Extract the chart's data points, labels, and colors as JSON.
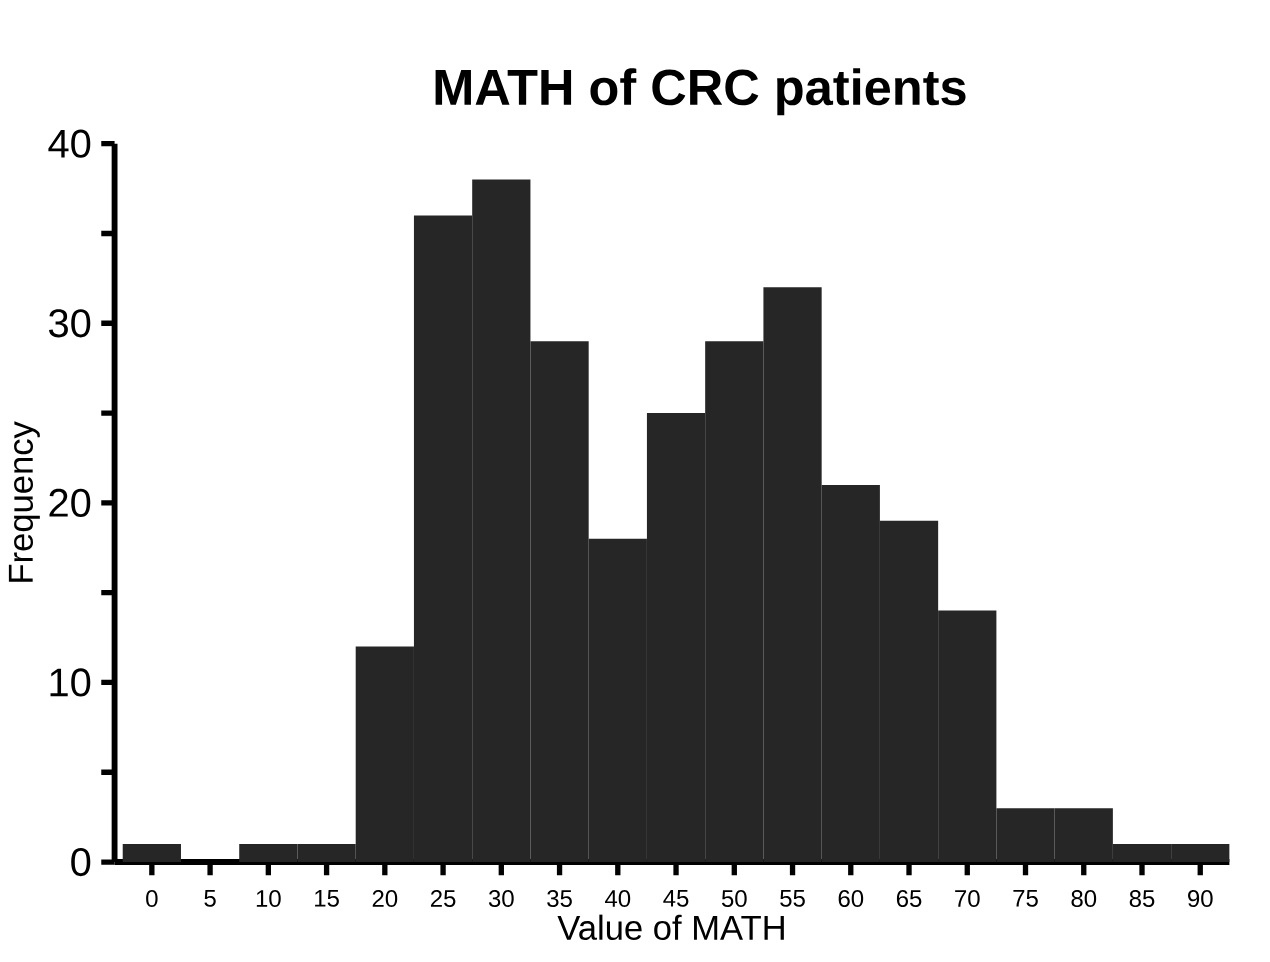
{
  "chart_data": {
    "type": "histogram",
    "title": "MATH of CRC patients",
    "xlabel": "Value of MATH",
    "ylabel": "Frequency",
    "bins": [
      -2.5,
      2.5,
      7.5,
      12.5,
      17.5,
      22.5,
      27.5,
      32.5,
      37.5,
      42.5,
      47.5,
      52.5,
      57.5,
      62.5,
      67.5,
      72.5,
      77.5,
      82.5,
      87.5,
      92.5
    ],
    "values": [
      1,
      0,
      1,
      1,
      12,
      36,
      38,
      29,
      18,
      25,
      29,
      32,
      21,
      19,
      14,
      3,
      3,
      1,
      1
    ],
    "color": "#262626",
    "xlim": [
      -3.2,
      92.5
    ],
    "ylim": [
      0,
      40
    ],
    "xticks": [
      0,
      5,
      10,
      15,
      20,
      25,
      30,
      35,
      40,
      45,
      50,
      55,
      60,
      65,
      70,
      75,
      80,
      85,
      90
    ],
    "yticks": [
      0,
      {
        "value": 5,
        "label": null
      },
      10,
      {
        "value": 15,
        "label": null
      },
      20,
      {
        "value": 25,
        "label": null
      },
      30,
      {
        "value": 35,
        "label": null
      },
      40
    ],
    "grid": false
  }
}
